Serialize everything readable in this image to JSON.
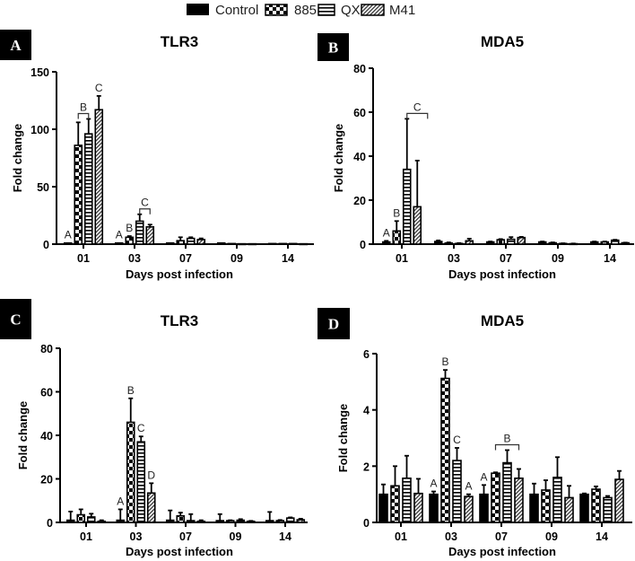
{
  "legend": {
    "entries": [
      "Control",
      "885",
      "QX",
      "M41"
    ],
    "patterns": [
      "solid-black",
      "checker",
      "horizontal-stripes",
      "diagonal-hatch"
    ]
  },
  "chart_data": [
    {
      "panel": "A",
      "type": "bar",
      "title": "TLR3",
      "xlabel": "Days post infection",
      "ylabel": "Fold change",
      "categories": [
        "01",
        "03",
        "07",
        "09",
        "14"
      ],
      "ylim": [
        0,
        150
      ],
      "yticks": [
        0,
        50,
        100,
        150
      ],
      "series": [
        {
          "name": "Control",
          "values": [
            1,
            1,
            1,
            1,
            0.5
          ],
          "errors": [
            0,
            0,
            0,
            0,
            0
          ]
        },
        {
          "name": "885",
          "values": [
            86,
            6,
            3,
            0.5,
            0.5
          ],
          "errors": [
            20,
            1,
            3,
            0,
            0
          ]
        },
        {
          "name": "QX",
          "values": [
            96,
            20,
            5,
            0.3,
            0.5
          ],
          "errors": [
            13,
            6,
            1,
            0,
            0
          ]
        },
        {
          "name": "M41",
          "values": [
            117,
            15,
            4,
            0.3,
            0.3
          ],
          "errors": [
            12,
            2,
            1,
            0,
            0
          ]
        }
      ],
      "annotations": [
        {
          "text": "A",
          "group": 0,
          "from": 0,
          "to": 0
        },
        {
          "text": "B",
          "group": 0,
          "from": 1,
          "to": 2,
          "bracket": true
        },
        {
          "text": "C",
          "group": 0,
          "from": 3,
          "to": 3
        },
        {
          "text": "A",
          "group": 1,
          "from": 0,
          "to": 0
        },
        {
          "text": "B",
          "group": 1,
          "from": 1,
          "to": 1
        },
        {
          "text": "C",
          "group": 1,
          "from": 2,
          "to": 3,
          "bracket": true
        }
      ]
    },
    {
      "panel": "B",
      "type": "bar",
      "title": "MDA5",
      "xlabel": "Days post infection",
      "ylabel": "Fold change",
      "categories": [
        "01",
        "03",
        "07",
        "09",
        "14"
      ],
      "ylim": [
        0,
        80
      ],
      "yticks": [
        0,
        20,
        40,
        60,
        80
      ],
      "series": [
        {
          "name": "Control",
          "values": [
            1,
            1.2,
            1,
            1,
            1
          ],
          "errors": [
            0.5,
            0.5,
            0.2,
            0.2,
            0.2
          ]
        },
        {
          "name": "885",
          "values": [
            6,
            0.5,
            2,
            0.6,
            1
          ],
          "errors": [
            4.5,
            0.3,
            0.3,
            0.2,
            0.2
          ]
        },
        {
          "name": "QX",
          "values": [
            34,
            0.3,
            2.2,
            0.3,
            1.8
          ],
          "errors": [
            23,
            0.2,
            1,
            0.1,
            0.2
          ]
        },
        {
          "name": "M41",
          "values": [
            17,
            1.5,
            3,
            0.2,
            0.6
          ],
          "errors": [
            21,
            1,
            0.3,
            0.1,
            0.1
          ]
        }
      ],
      "annotations": [
        {
          "text": "A",
          "group": 0,
          "from": 0,
          "to": 0
        },
        {
          "text": "B",
          "group": 0,
          "from": 1,
          "to": 1
        },
        {
          "text": "C",
          "group": 0,
          "from": 2,
          "to": 4,
          "bracket": true
        }
      ]
    },
    {
      "panel": "C",
      "type": "bar",
      "title": "TLR3",
      "xlabel": "Days post infection",
      "ylabel": "Fold change",
      "categories": [
        "01",
        "03",
        "07",
        "09",
        "14"
      ],
      "ylim": [
        0,
        80
      ],
      "yticks": [
        0,
        20,
        40,
        60,
        80
      ],
      "series": [
        {
          "name": "Control",
          "values": [
            1,
            1,
            1,
            0.8,
            0.8
          ],
          "errors": [
            4,
            5,
            4.5,
            3,
            4
          ]
        },
        {
          "name": "885",
          "values": [
            3.5,
            46,
            3,
            0.8,
            0.8
          ],
          "errors": [
            2.5,
            11,
            1.5,
            0.2,
            0.3
          ]
        },
        {
          "name": "QX",
          "values": [
            2.5,
            37,
            0.8,
            1,
            2
          ],
          "errors": [
            1.5,
            2.5,
            3,
            0.5,
            0.3
          ]
        },
        {
          "name": "M41",
          "values": [
            0.5,
            13.5,
            0.5,
            0.5,
            1.2
          ],
          "errors": [
            0.5,
            4.5,
            0.5,
            0.2,
            0.5
          ]
        }
      ],
      "annotations": [
        {
          "text": "A",
          "group": 1,
          "from": 0,
          "to": 0
        },
        {
          "text": "B",
          "group": 1,
          "from": 1,
          "to": 1
        },
        {
          "text": "C",
          "group": 1,
          "from": 2,
          "to": 2
        },
        {
          "text": "D",
          "group": 1,
          "from": 3,
          "to": 3
        }
      ]
    },
    {
      "panel": "D",
      "type": "bar",
      "title": "MDA5",
      "xlabel": "Days post infection",
      "ylabel": "Fold change",
      "categories": [
        "01",
        "03",
        "07",
        "09",
        "14"
      ],
      "ylim": [
        0,
        6
      ],
      "yticks": [
        0,
        2,
        4,
        6
      ],
      "series": [
        {
          "name": "Control",
          "values": [
            1,
            1,
            1,
            1,
            1
          ],
          "errors": [
            0.35,
            0.1,
            0.33,
            0.38,
            0.03
          ]
        },
        {
          "name": "885",
          "values": [
            1.3,
            5.12,
            1.75,
            1.15,
            1.18
          ],
          "errors": [
            0.7,
            0.3,
            0.03,
            0.35,
            0.1
          ]
        },
        {
          "name": "QX",
          "values": [
            1.57,
            2.2,
            2.12,
            1.6,
            0.88
          ],
          "errors": [
            0.8,
            0.45,
            0.45,
            0.72,
            0.06
          ]
        },
        {
          "name": "M41",
          "values": [
            1.03,
            0.92,
            1.57,
            0.88,
            1.53
          ],
          "errors": [
            0.52,
            0.08,
            0.33,
            0.42,
            0.3
          ]
        }
      ],
      "annotations": [
        {
          "text": "A",
          "group": 1,
          "from": 0,
          "to": 0
        },
        {
          "text": "B",
          "group": 1,
          "from": 1,
          "to": 1
        },
        {
          "text": "C",
          "group": 1,
          "from": 2,
          "to": 2
        },
        {
          "text": "A",
          "group": 1,
          "from": 3,
          "to": 3
        },
        {
          "text": "A",
          "group": 2,
          "from": 0,
          "to": 0
        },
        {
          "text": "B",
          "group": 2,
          "from": 1,
          "to": 3,
          "bracket": true
        }
      ]
    }
  ]
}
